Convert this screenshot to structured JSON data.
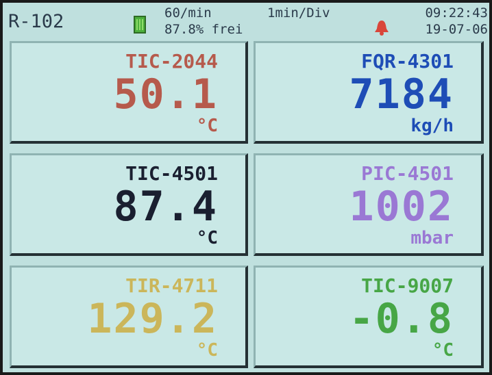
{
  "header": {
    "title": "R-102",
    "rate": "60/min",
    "memory": "87.8% frei",
    "timebase": "1min/Div",
    "time": "09:22:43",
    "date": "19-07-06"
  },
  "panels": [
    {
      "tag": "TIC-2044",
      "value": 50.1,
      "unit": "°C",
      "color": "#b65a4c"
    },
    {
      "tag": "FQR-4301",
      "value": 7184,
      "unit": "kg/h",
      "color": "#1e4db6"
    },
    {
      "tag": "TIC-4501",
      "value": 87.4,
      "unit": "°C",
      "color": "#1a1f30"
    },
    {
      "tag": "PIC-4501",
      "value": 1002,
      "unit": "mbar",
      "color": "#9a78d4"
    },
    {
      "tag": "TIR-4711",
      "value": 129.2,
      "unit": "°C",
      "color": "#cbb65a"
    },
    {
      "tag": "TIC-9007",
      "value": -0.8,
      "unit": "°C",
      "color": "#47a646"
    }
  ]
}
